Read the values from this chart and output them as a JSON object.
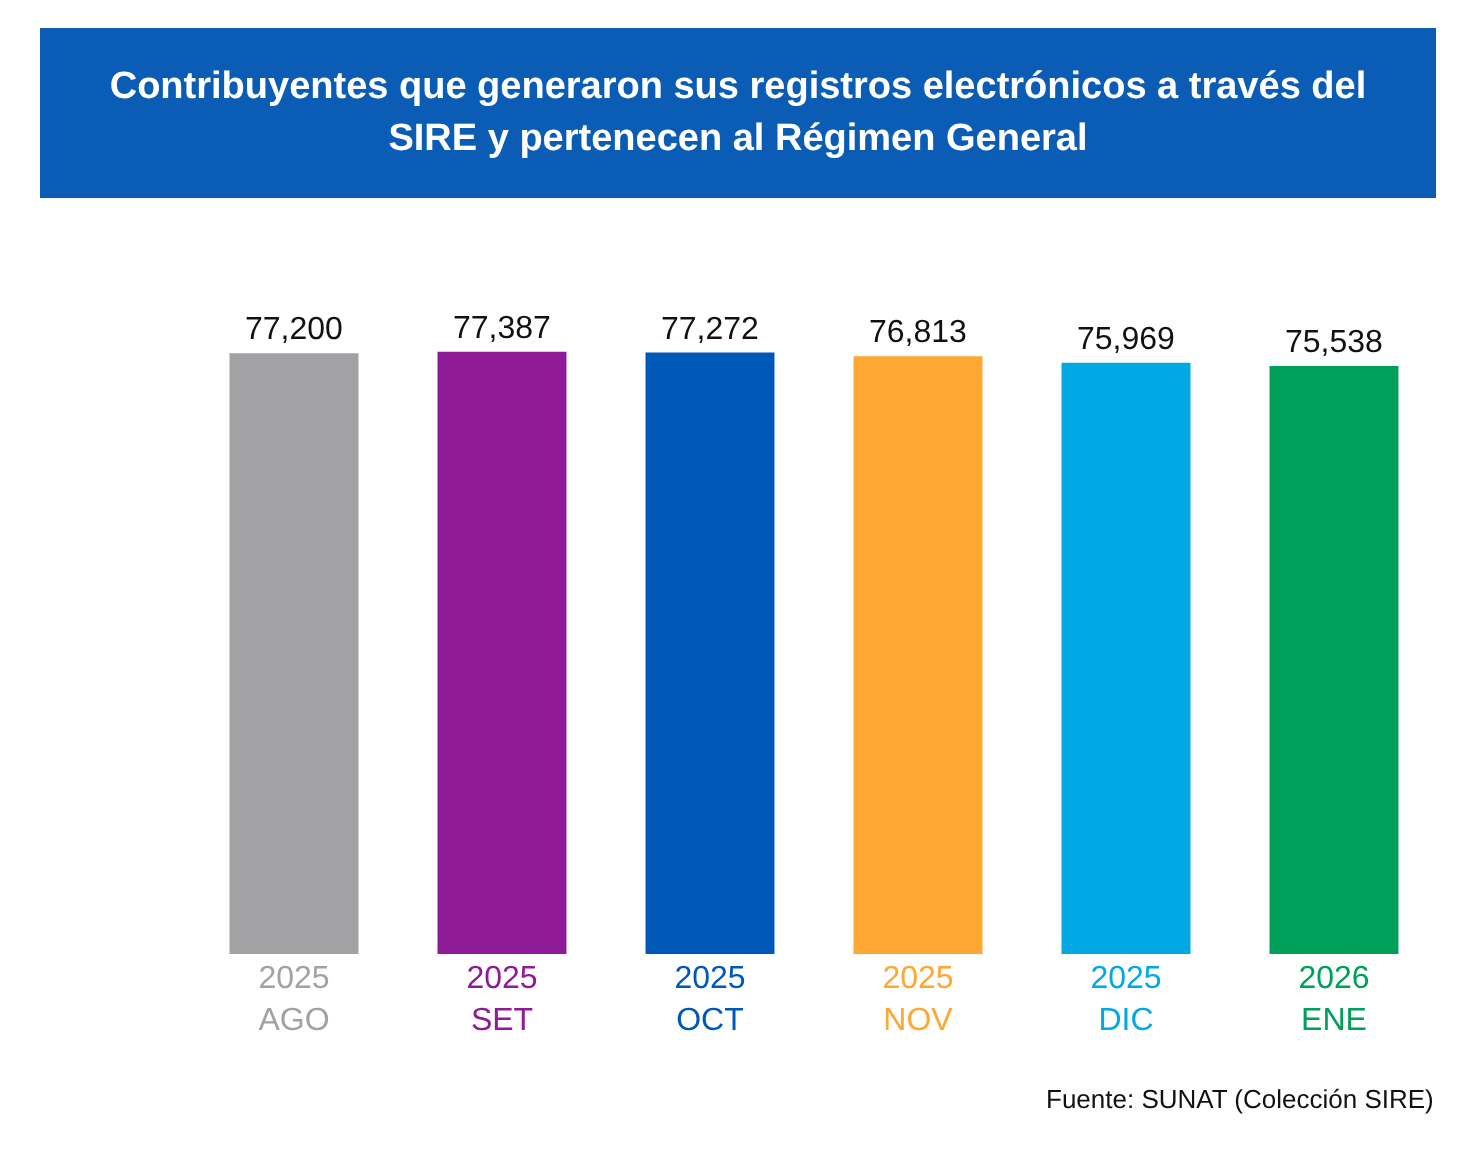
{
  "chart_data": {
    "type": "bar",
    "title": "Contribuyentes que generaron sus registros electrónicos a través del SIRE y pertenecen al Régimen General",
    "categories": [
      "2025\nAGO",
      "2025\nSET",
      "2025\nOCT",
      "2025\nNOV",
      "2025\nDIC",
      "2026\nENE"
    ],
    "values": [
      77200,
      77387,
      77272,
      76813,
      75969,
      75538
    ],
    "colors": [
      "#a2a2a4",
      "#8e1a98",
      "#0058b9",
      "#ffa733",
      "#00a8e4",
      "#00a05c"
    ],
    "value_labels": [
      "77,200",
      "77,387",
      "77,272",
      "76,813",
      "75,969",
      "75,538"
    ],
    "annotations": [
      "Fuente: SUNAT (Colección SIRE)"
    ]
  }
}
